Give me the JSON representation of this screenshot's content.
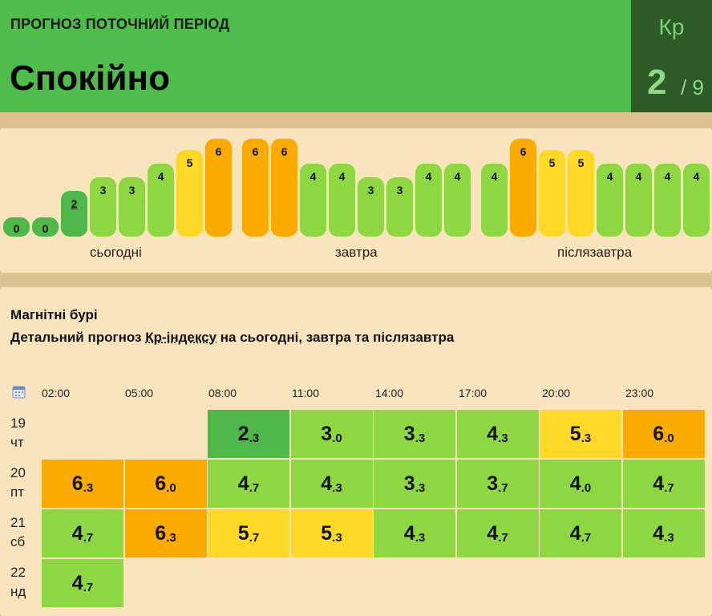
{
  "header": {
    "subtitle": "ПРОГНОЗ ПОТОЧНИЙ ПЕРІОД",
    "status": "Спокійно",
    "kp_label": "Кр",
    "kp_value": "2",
    "kp_max": "/ 9",
    "colors": {
      "status_bg": "#4fbc4c",
      "kp_bg": "#2c5b26"
    }
  },
  "bars_panel": {
    "current_index": 2,
    "bars": [
      {
        "v": "0",
        "c": "#4fb84a"
      },
      {
        "v": "0",
        "c": "#4fb84a"
      },
      {
        "v": "2",
        "c": "#4fb84a"
      },
      {
        "v": "3",
        "c": "#8fd742"
      },
      {
        "v": "3",
        "c": "#8fd742"
      },
      {
        "v": "4",
        "c": "#8fd742"
      },
      {
        "v": "5",
        "c": "#fdd826"
      },
      {
        "v": "6",
        "c": "#fbab00"
      },
      {
        "v": "6",
        "c": "#fbab00"
      },
      {
        "v": "6",
        "c": "#fbab00"
      },
      {
        "v": "4",
        "c": "#8fd742"
      },
      {
        "v": "4",
        "c": "#8fd742"
      },
      {
        "v": "3",
        "c": "#8fd742"
      },
      {
        "v": "3",
        "c": "#8fd742"
      },
      {
        "v": "4",
        "c": "#8fd742"
      },
      {
        "v": "4",
        "c": "#8fd742"
      },
      {
        "v": "4",
        "c": "#8fd742"
      },
      {
        "v": "6",
        "c": "#fbab00"
      },
      {
        "v": "5",
        "c": "#fdd826"
      },
      {
        "v": "5",
        "c": "#fdd826"
      },
      {
        "v": "4",
        "c": "#8fd742"
      },
      {
        "v": "4",
        "c": "#8fd742"
      },
      {
        "v": "4",
        "c": "#8fd742"
      },
      {
        "v": "4",
        "c": "#8fd742"
      }
    ],
    "day_labels": [
      "сьогодні",
      "завтра",
      "післязавтра"
    ]
  },
  "storms": {
    "title": "Магнітні бурі",
    "desc_prefix": "Детальний прогноз ",
    "desc_link": "Кр-індексу",
    "desc_suffix": " на сьогодні, завтра та післязавтра",
    "times": [
      "02:00",
      "05:00",
      "08:00",
      "11:00",
      "14:00",
      "17:00",
      "20:00",
      "23:00"
    ],
    "rows": [
      {
        "day": "19",
        "wd": "чт",
        "cells": [
          null,
          null,
          {
            "b": "2",
            "s": "3",
            "c": "#4fb84a"
          },
          {
            "b": "3",
            "s": "0",
            "c": "#8fd742"
          },
          {
            "b": "3",
            "s": "3",
            "c": "#8fd742"
          },
          {
            "b": "4",
            "s": "3",
            "c": "#8fd742"
          },
          {
            "b": "5",
            "s": "3",
            "c": "#fdd826"
          },
          {
            "b": "6",
            "s": "0",
            "c": "#fbab00"
          }
        ]
      },
      {
        "day": "20",
        "wd": "пт",
        "cells": [
          {
            "b": "6",
            "s": "3",
            "c": "#fbab00"
          },
          {
            "b": "6",
            "s": "0",
            "c": "#fbab00"
          },
          {
            "b": "4",
            "s": "7",
            "c": "#8fd742"
          },
          {
            "b": "4",
            "s": "3",
            "c": "#8fd742"
          },
          {
            "b": "3",
            "s": "3",
            "c": "#8fd742"
          },
          {
            "b": "3",
            "s": "7",
            "c": "#8fd742"
          },
          {
            "b": "4",
            "s": "0",
            "c": "#8fd742"
          },
          {
            "b": "4",
            "s": "7",
            "c": "#8fd742"
          }
        ]
      },
      {
        "day": "21",
        "wd": "сб",
        "cells": [
          {
            "b": "4",
            "s": "7",
            "c": "#8fd742"
          },
          {
            "b": "6",
            "s": "3",
            "c": "#fbab00"
          },
          {
            "b": "5",
            "s": "7",
            "c": "#fdd826"
          },
          {
            "b": "5",
            "s": "3",
            "c": "#fdd826"
          },
          {
            "b": "4",
            "s": "3",
            "c": "#8fd742"
          },
          {
            "b": "4",
            "s": "7",
            "c": "#8fd742"
          },
          {
            "b": "4",
            "s": "7",
            "c": "#8fd742"
          },
          {
            "b": "4",
            "s": "3",
            "c": "#8fd742"
          }
        ]
      },
      {
        "day": "22",
        "wd": "нд",
        "cells": [
          {
            "b": "4",
            "s": "7",
            "c": "#8fd742"
          },
          null,
          null,
          null,
          null,
          null,
          null,
          null
        ]
      }
    ]
  }
}
